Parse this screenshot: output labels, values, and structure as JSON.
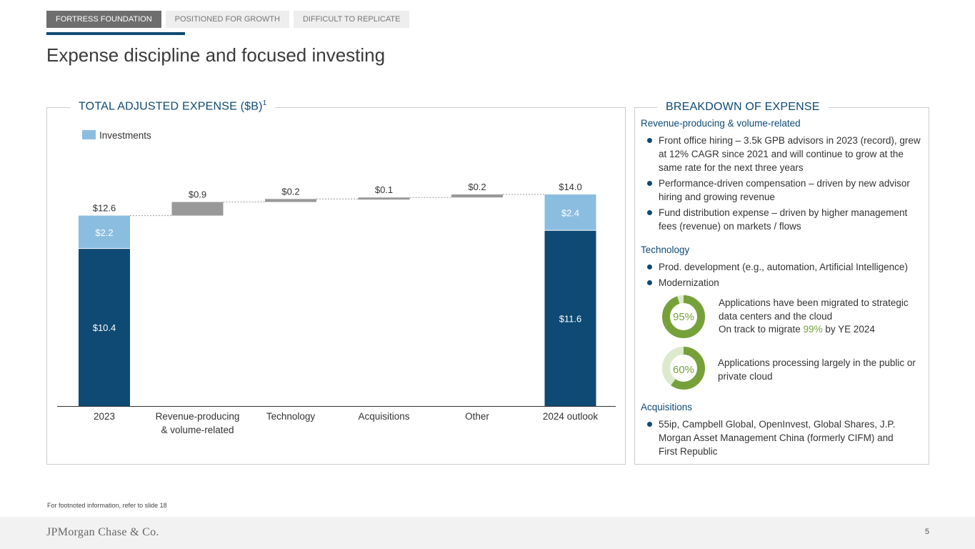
{
  "tabs": [
    "FORTRESS FOUNDATION",
    "POSITIONED FOR GROWTH",
    "DIFFICULT TO REPLICATE"
  ],
  "page_title": "Expense discipline and focused investing",
  "left_panel": {
    "title": "TOTAL ADJUSTED EXPENSE ($B)",
    "title_sup": "1"
  },
  "colors": {
    "navy": "#0e4a73",
    "light_blue": "#8bbde0",
    "gray": "#999999",
    "green": "#76a13a",
    "light_green": "#dde9cc"
  },
  "chart_data": {
    "type": "bar",
    "subtype": "waterfall",
    "legend": [
      {
        "label": "Investments",
        "color": "#8bbde0"
      }
    ],
    "categories": [
      "2023",
      "Revenue-producing & volume-related",
      "Technology",
      "Acquisitions",
      "Other",
      "2024 outlook"
    ],
    "category_lines": [
      [
        "2023"
      ],
      [
        "Revenue-producing",
        "& volume-related"
      ],
      [
        "Technology"
      ],
      [
        "Acquisitions"
      ],
      [
        "Other"
      ],
      [
        "2024 outlook"
      ]
    ],
    "bars": [
      {
        "kind": "total",
        "base": 10.4,
        "investments": 2.2,
        "total": 12.6,
        "base_label": "$10.4",
        "inv_label": "$2.2",
        "total_label": "$12.6"
      },
      {
        "kind": "step",
        "value": 0.9,
        "label": "$0.9"
      },
      {
        "kind": "step",
        "value": 0.2,
        "label": "$0.2"
      },
      {
        "kind": "step",
        "value": 0.1,
        "label": "$0.1"
      },
      {
        "kind": "step",
        "value": 0.2,
        "label": "$0.2"
      },
      {
        "kind": "total",
        "base": 11.6,
        "investments": 2.4,
        "total": 14.0,
        "base_label": "$11.6",
        "inv_label": "$2.4",
        "total_label": "$14.0"
      }
    ],
    "ylim": [
      0,
      14.0
    ]
  },
  "breakdown": {
    "title": "BREAKDOWN OF EXPENSE",
    "revenue_head": "Revenue-producing & volume-related",
    "revenue_bullets": [
      "Front office hiring – 3.5k GPB advisors in 2023 (record), grew at 12% CAGR since 2021 and will continue to grow at the same rate for the next three years",
      "Performance-driven compensation – driven by new advisor hiring and growing revenue",
      "Fund distribution expense – driven by higher management fees (revenue) on markets / flows"
    ],
    "tech_head": "Technology",
    "tech_bullets": [
      "Prod. development (e.g., automation, Artificial Intelligence)",
      "Modernization"
    ],
    "donut1": {
      "value": 95,
      "label": "95%",
      "line1": "Applications have been migrated to strategic data centers and the cloud",
      "line2_pre": "On track to migrate ",
      "line2_highlight": "99%",
      "line2_post": " by YE 2024"
    },
    "donut2": {
      "value": 60,
      "label": "60%",
      "text": "Applications processing largely in the public or private cloud"
    },
    "acq_head": "Acquisitions",
    "acq_bullets": [
      "55ip, Campbell Global, OpenInvest, Global Shares, J.P. Morgan Asset Management China (formerly CIFM) and First Republic"
    ]
  },
  "footnote": "For footnoted information, refer to slide 18",
  "footer": {
    "logo": "JPMorgan Chase & Co.",
    "page": "5"
  }
}
